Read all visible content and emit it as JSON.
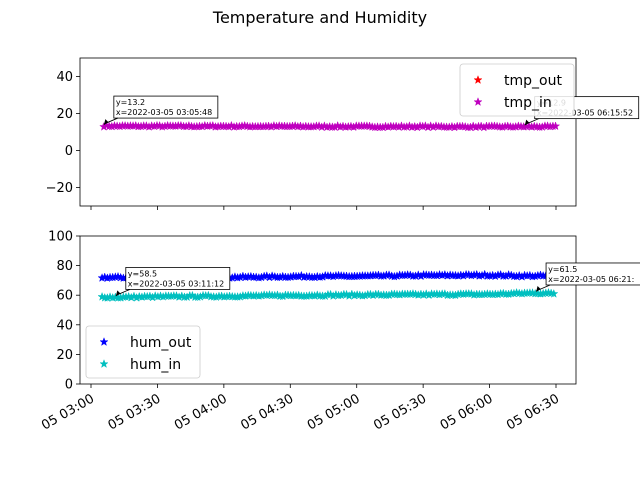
{
  "title": "Temperature and Humidity",
  "chart_data": [
    {
      "type": "scatter",
      "marker": "star",
      "ylim": [
        -30,
        50
      ],
      "yticks": [
        -20,
        0,
        20,
        40
      ],
      "xlim": [
        "2022-03-05 03:00",
        "2022-03-05 06:30"
      ],
      "legend": "top-right",
      "series": [
        {
          "name": "tmp_out",
          "color": "#ff0000",
          "points": []
        },
        {
          "name": "tmp_in",
          "color": "#bf00bf",
          "points": [
            [
              "2022-03-05 03:05:48",
              13.2
            ],
            [
              "2022-03-05 03:30",
              13.1
            ],
            [
              "2022-03-05 04:00",
              13.1
            ],
            [
              "2022-03-05 04:30",
              13.0
            ],
            [
              "2022-03-05 05:00",
              12.9
            ],
            [
              "2022-03-05 05:30",
              12.9
            ],
            [
              "2022-03-05 06:00",
              12.8
            ],
            [
              "2022-03-05 06:15:52",
              12.9
            ],
            [
              "2022-03-05 06:30",
              12.8
            ]
          ]
        }
      ],
      "annotations": [
        {
          "label": "y=13.2",
          "sublabel": "x=2022-03-05 03:05:48",
          "x": "2022-03-05 03:05:48",
          "y": 13.2
        },
        {
          "label": "y=12.9",
          "sublabel": "x=2022-03-05 06:15:52",
          "x": "2022-03-05 06:15:52",
          "y": 12.9
        }
      ]
    },
    {
      "type": "scatter",
      "marker": "star",
      "ylim": [
        0,
        100
      ],
      "yticks": [
        0,
        20,
        40,
        60,
        80,
        100
      ],
      "xlim": [
        "2022-03-05 03:00",
        "2022-03-05 06:30"
      ],
      "xticks": [
        "05 03:00",
        "05 03:30",
        "05 04:00",
        "05 04:30",
        "05 05:00",
        "05 05:30",
        "05 06:00",
        "05 06:30"
      ],
      "legend": "bottom-left",
      "series": [
        {
          "name": "hum_out",
          "color": "#0000ff",
          "points": [
            [
              "2022-03-05 03:05",
              72.0
            ],
            [
              "2022-03-05 03:30",
              71.8
            ],
            [
              "2022-03-05 04:00",
              72.0
            ],
            [
              "2022-03-05 04:30",
              72.6
            ],
            [
              "2022-03-05 05:00",
              72.8
            ],
            [
              "2022-03-05 05:30",
              73.3
            ],
            [
              "2022-03-05 06:00",
              73.5
            ],
            [
              "2022-03-05 06:15",
              73.0
            ],
            [
              "2022-03-05 06:30",
              73.0
            ]
          ]
        },
        {
          "name": "hum_in",
          "color": "#00bfbf",
          "points": [
            [
              "2022-03-05 03:05",
              58.8
            ],
            [
              "2022-03-05 03:11:12",
              58.5
            ],
            [
              "2022-03-05 03:30",
              59.0
            ],
            [
              "2022-03-05 04:00",
              59.3
            ],
            [
              "2022-03-05 04:30",
              59.8
            ],
            [
              "2022-03-05 05:00",
              60.1
            ],
            [
              "2022-03-05 05:30",
              60.4
            ],
            [
              "2022-03-05 06:00",
              60.6
            ],
            [
              "2022-03-05 06:21",
              61.5
            ],
            [
              "2022-03-05 06:30",
              61.0
            ]
          ]
        }
      ],
      "annotations": [
        {
          "label": "y=58.5",
          "sublabel": "x=2022-03-05 03:11:12",
          "x": "2022-03-05 03:11:12",
          "y": 58.5
        },
        {
          "label": "y=61.5",
          "sublabel": "x=2022-03-05 06:21:",
          "x": "2022-03-05 06:21",
          "y": 61.5
        }
      ]
    }
  ]
}
